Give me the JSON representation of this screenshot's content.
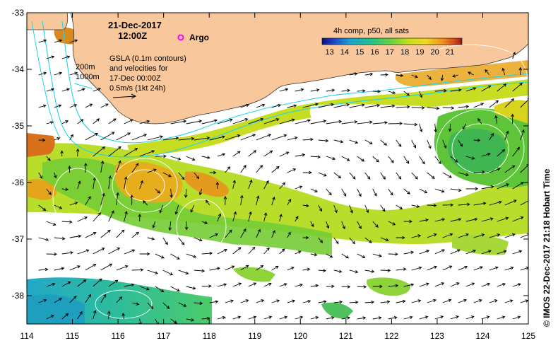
{
  "map": {
    "date": "21-Dec-2017",
    "time": "12:00Z",
    "argo_label": "Argo",
    "gsla": {
      "line1": "GSLA (0.1m contours)",
      "line2": "and velocities for",
      "line3": "17-Dec 00:00Z",
      "line4": "0.5m/s (1kt 24h)"
    },
    "isobaths": {
      "shallow": "200m",
      "deep": "1000m"
    },
    "colorbar": {
      "title": "4h comp, p50, all sats",
      "ticks": [
        "13",
        "14",
        "15",
        "16",
        "17",
        "18",
        "19",
        "20",
        "21"
      ],
      "min": 12.5,
      "max": 21.8
    },
    "credit": "© IMOS 22-Dec-2017 21:18 Hobart Time",
    "x_axis": {
      "ticks": [
        "114",
        "115",
        "116",
        "117",
        "118",
        "119",
        "120",
        "121",
        "122",
        "123",
        "124",
        "125"
      ],
      "min": 114,
      "max": 125
    },
    "y_axis": {
      "ticks": [
        "-33",
        "-34",
        "-35",
        "-36",
        "-37",
        "-38"
      ],
      "min": -38.5,
      "max": -33
    },
    "colors": {
      "land": "#f9c79c",
      "argo": "#ff00ff",
      "isobath": "#22d3e6",
      "cold": "#1aa6b0",
      "warm": "#e3a21a"
    }
  }
}
